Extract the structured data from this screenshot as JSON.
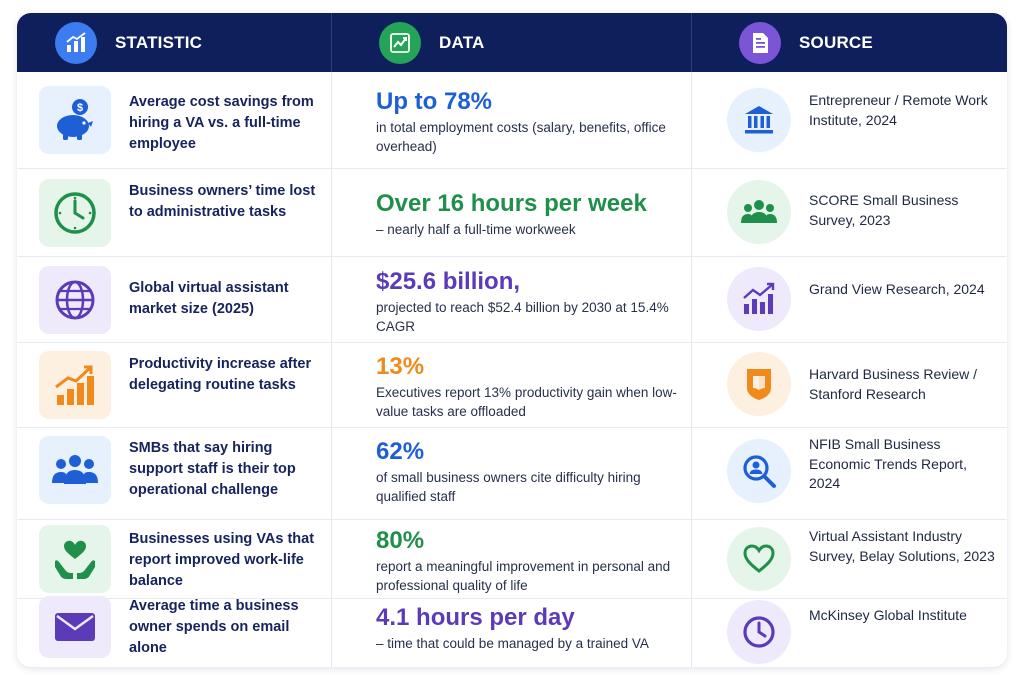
{
  "header": {
    "statistic_label": "STATISTIC",
    "data_label": "DATA",
    "source_label": "SOURCE"
  },
  "colors": {
    "navy": "#0e1f5c",
    "blue": "#1f5fd6",
    "green": "#1f8f4a",
    "purple": "#5b3bb8",
    "orange": "#f08a1c"
  },
  "rows": [
    {
      "statistic": "Average cost savings from hiring a VA vs. a full-time employee",
      "data_head": "Up to 78%",
      "data_sub": "in total employment costs (salary, benefits, office overhead)",
      "source": "Entrepreneur / Remote Work Institute, 2024",
      "stat_icon": "piggy-bank-icon",
      "source_icon": "institution-icon"
    },
    {
      "statistic": "Business owners’ time lost to administrative tasks",
      "data_head": "Over 16 hours per week",
      "data_sub": "– nearly half a full-time workweek",
      "source": "SCORE Small Business Survey, 2023",
      "stat_icon": "clock-icon",
      "source_icon": "people-group-icon"
    },
    {
      "statistic": "Global virtual assistant market size (2025)",
      "data_head": "$25.6 billion,",
      "data_sub": "projected to reach $52.4 billion by 2030 at 15.4% CAGR",
      "source": "Grand View Research, 2024",
      "stat_icon": "globe-icon",
      "source_icon": "growth-chart-icon"
    },
    {
      "statistic": "Productivity increase after delegating routine tasks",
      "data_head": "13%",
      "data_sub": "Executives report 13% productivity gain when low-value tasks are offloaded",
      "source": "Harvard Business Review / Stanford Research",
      "stat_icon": "rising-bars-icon",
      "source_icon": "shield-book-icon"
    },
    {
      "statistic": "SMBs that say hiring support staff is their top operational challenge",
      "data_head": "62%",
      "data_sub": "of small business owners cite difficulty hiring qualified staff",
      "source": "NFIB Small Business Economic Trends Report, 2024",
      "stat_icon": "team-icon",
      "source_icon": "person-search-icon"
    },
    {
      "statistic": "Businesses using VAs that report improved work-life balance",
      "data_head": "80%",
      "data_sub": "report a meaningful improvement in personal and professional quality of life",
      "source": "Virtual Assistant Industry Survey, Belay Solutions, 2023",
      "stat_icon": "heart-hands-icon",
      "source_icon": "heart-outline-icon"
    },
    {
      "statistic": "Average time a business owner spends on email alone",
      "data_head": "4.1 hours per day",
      "data_sub": "– time that could be managed by a trained VA",
      "source": "McKinsey Global Institute",
      "stat_icon": "envelope-icon",
      "source_icon": "clock-outline-icon"
    }
  ]
}
